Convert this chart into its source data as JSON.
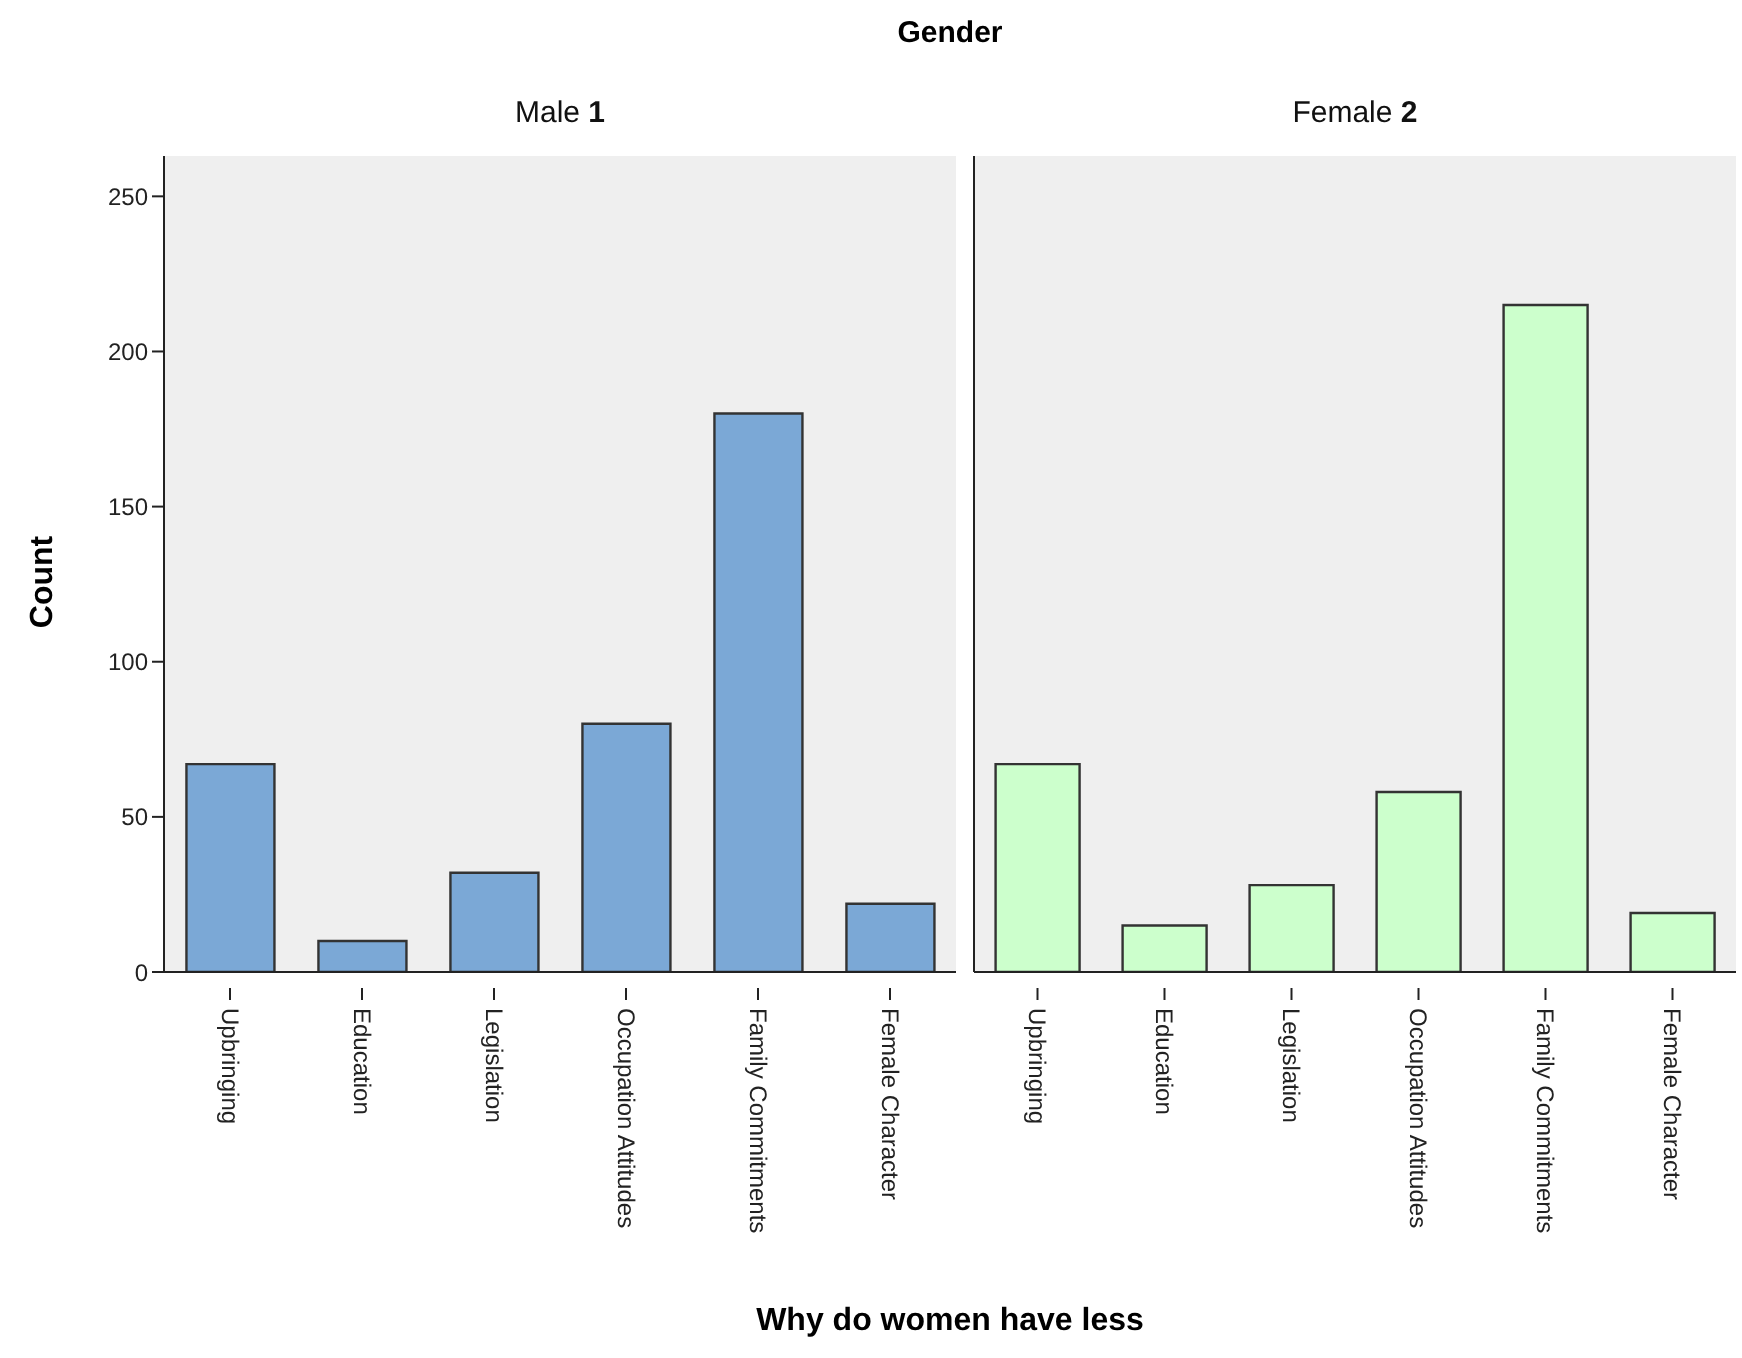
{
  "chart_data": [
    {
      "type": "bar",
      "title": "Male 1",
      "annotations": [
        "Gender"
      ],
      "xlabel": "Why do women have less",
      "ylabel": "Count",
      "categories": [
        "Upbringing",
        "Education",
        "Legislation",
        "Occupation Attitudes",
        "Family Commitments",
        "Female Character"
      ],
      "values": [
        67,
        10,
        32,
        80,
        180,
        22
      ],
      "color": "#7ba8d6",
      "ylim": [
        0,
        263
      ],
      "yticks": [
        0,
        50,
        100,
        150,
        200,
        250
      ]
    },
    {
      "type": "bar",
      "title": "Female 2",
      "categories": [
        "Upbringing",
        "Education",
        "Legislation",
        "Occupation Attitudes",
        "Family Commitments",
        "Female Character"
      ],
      "values": [
        67,
        15,
        28,
        58,
        215,
        19
      ],
      "color": "#ccffcc",
      "ylim": [
        0,
        263
      ],
      "yticks": [
        0,
        50,
        100,
        150,
        200,
        250
      ],
      "tick_labels": "x"
    }
  ]
}
